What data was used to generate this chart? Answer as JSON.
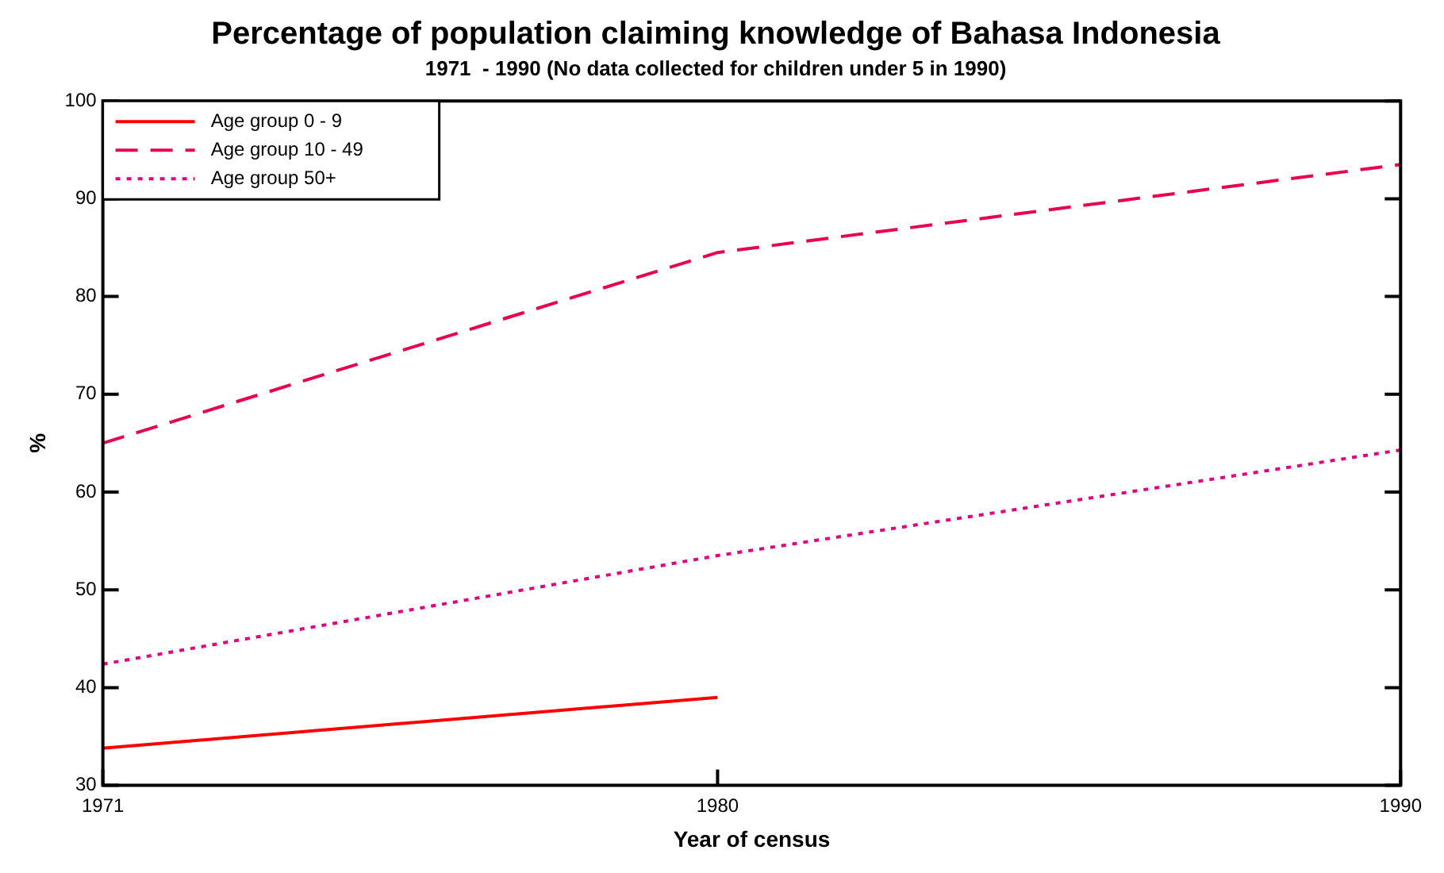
{
  "chart_data": {
    "type": "line",
    "title": "Percentage of population claiming knowledge of Bahasa Indonesia",
    "subtitle": "1971  - 1990 (No data collected for children under 5 in 1990)",
    "xlabel": "Year of census",
    "ylabel": "%",
    "x": [
      1971,
      1980,
      1990
    ],
    "xlim": [
      1971,
      1990
    ],
    "xticks": [
      1971,
      1980,
      1990
    ],
    "ylim": [
      30,
      100
    ],
    "yticks": [
      30,
      40,
      50,
      60,
      70,
      80,
      90,
      100
    ],
    "grid": false,
    "legend": "top left",
    "marker": "none",
    "series": [
      {
        "name": "Age group 0 - 9",
        "color": "#ff0000",
        "line_style": "solid",
        "values": [
          33.8,
          39.0,
          null
        ]
      },
      {
        "name": "Age group 10 - 49",
        "color": "#e8004f",
        "line_style": "dashed",
        "values": [
          65.0,
          84.5,
          93.5
        ]
      },
      {
        "name": "Age group 50+",
        "color": "#e0007f",
        "line_style": "dotted",
        "values": [
          42.4,
          53.5,
          64.3
        ]
      }
    ]
  }
}
